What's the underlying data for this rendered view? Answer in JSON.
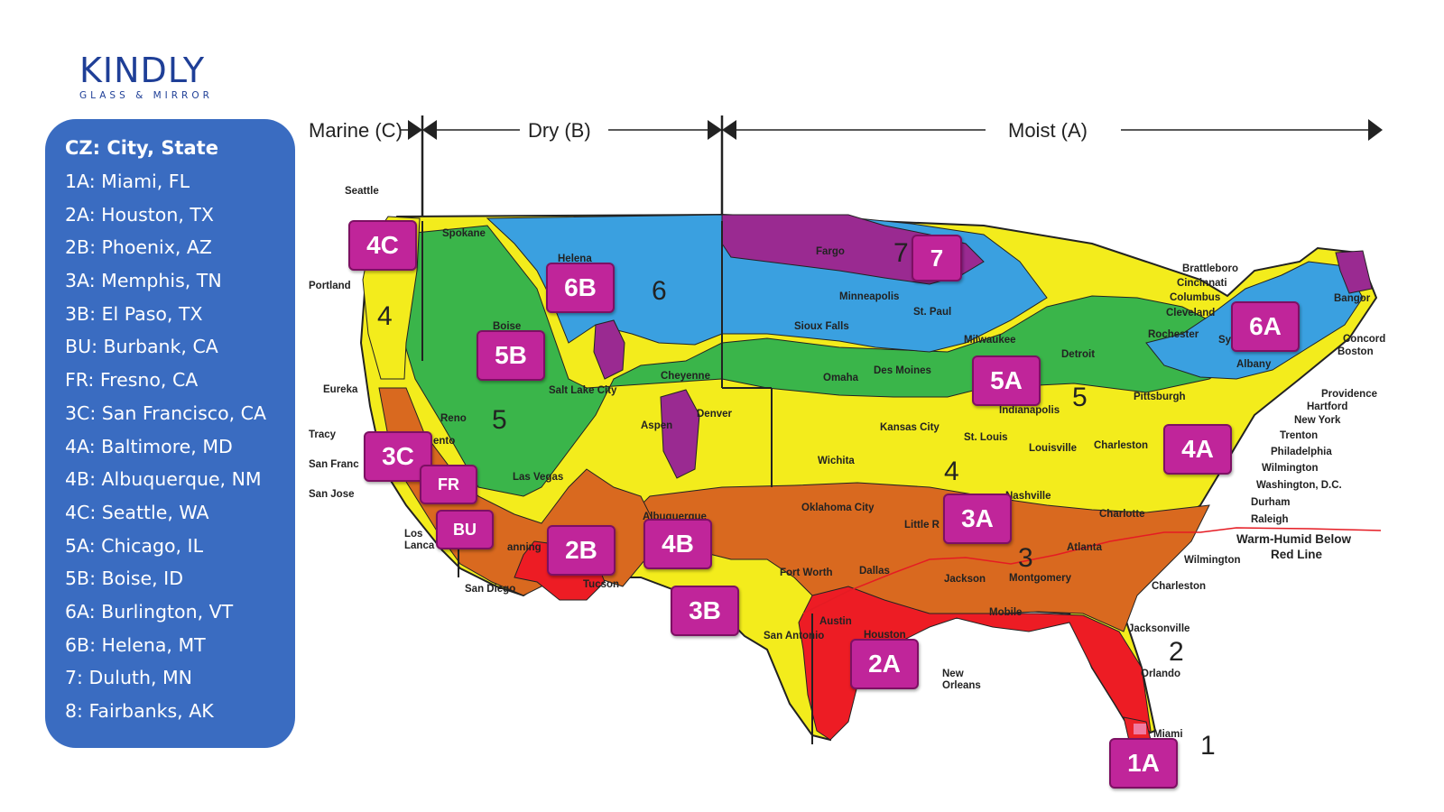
{
  "logo": {
    "name": "KINDLY",
    "tagline": "GLASS & MIRROR"
  },
  "legend": {
    "title": "CZ: City, State",
    "items": [
      "1A: Miami, FL",
      "2A: Houston, TX",
      "2B: Phoenix, AZ",
      "3A: Memphis, TN",
      "3B: El Paso, TX",
      "BU: Burbank, CA",
      "FR: Fresno, CA",
      "3C: San Francisco, CA",
      "4A: Baltimore, MD",
      "4B: Albuquerque,  NM",
      "4C: Seattle, WA",
      "5A: Chicago, IL",
      "5B: Boise, ID",
      "6A: Burlington, VT",
      "6B: Helena, MT",
      "7: Duluth, MN",
      "8: Fairbanks, AK"
    ]
  },
  "map": {
    "header": {
      "marine": "Marine (C)",
      "dry": "Dry (B)",
      "moist": "Moist (A)"
    },
    "zone_numbers": [
      "1",
      "2",
      "3",
      "4",
      "4",
      "5",
      "5",
      "6",
      "7"
    ],
    "note": [
      "Warm-Humid Below",
      "Red Line"
    ],
    "colors": {
      "zone1": "#ec2228",
      "zone2_red": "#ed1c24",
      "zone3_orange": "#d9691f",
      "zone4_yellow": "#f3ec1c",
      "zone5_green": "#3ab54a",
      "zone6_blue": "#3aa0e0",
      "zone7_purple": "#9a2a91",
      "badge": "#c0259a",
      "legend_panel": "#3a6cc1",
      "logo": "#1f3f97"
    },
    "cities": [
      "Seattle",
      "Portland",
      "Spokane",
      "Helena",
      "Boise",
      "Eureka",
      "Tracy",
      "San Franc",
      "San Jose",
      "Reno",
      "ento",
      "Las Vegas",
      "Los",
      "Lanca",
      "anning",
      "San Diego",
      "Tucson",
      "Salt Lake City",
      "Cheyenne",
      "Denver",
      "Aspen",
      "Albuquerque",
      "Fargo",
      "Minneapolis",
      "St. Paul",
      "Sioux Falls",
      "Omaha",
      "Des Moines",
      "Milwaukee",
      "Detroit",
      "Kansas City",
      "Wichita",
      "St. Louis",
      "Indianapolis",
      "Louisville",
      "Charleston",
      "Pittsburgh",
      "Nashville",
      "Oklahoma City",
      "Little R",
      "Charlotte",
      "Atlanta",
      "Fort Worth",
      "Dallas",
      "Jackson",
      "Montgomery",
      "Mobile",
      "Austin",
      "Houston",
      "San Antonio",
      "New",
      "Orleans",
      "Jacksonville",
      "Orlando",
      "Miami",
      "Brattleboro",
      "Cincinnati",
      "Columbus",
      "Cleveland",
      "Rochester",
      "Syr",
      "Albany",
      "Bangor",
      "Concord",
      "Boston",
      "Providence",
      "Hartford",
      "New York",
      "Trenton",
      "Philadelphia",
      "Wilmington",
      "Washington, D.C.",
      "Durham",
      "Raleigh",
      "Wilmington",
      "Charleston"
    ]
  },
  "badges": [
    "4C",
    "7",
    "6B",
    "5B",
    "6A",
    "5A",
    "3C",
    "FR",
    "BU",
    "4A",
    "3A",
    "2B",
    "4B",
    "3B",
    "2A",
    "1A"
  ]
}
